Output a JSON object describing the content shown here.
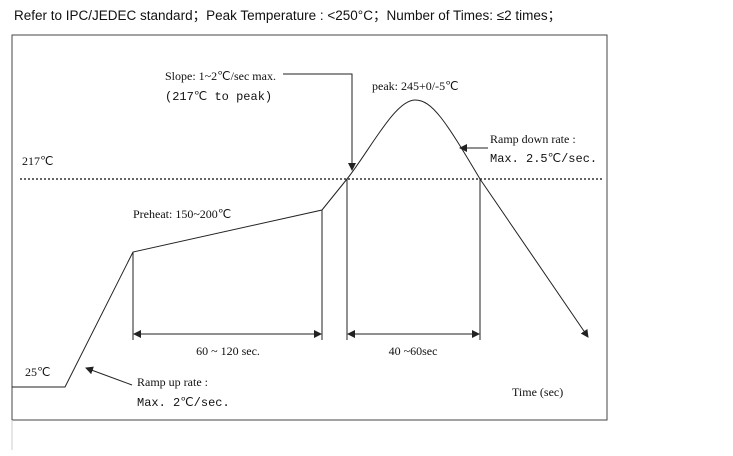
{
  "header": {
    "title": "Refer to IPC/JEDEC standard；Peak Temperature : <250°C；Number of Times:  ≤2 times；"
  },
  "diagram": {
    "slope_line1": "Slope: 1~2℃/sec max.",
    "slope_line2": "(217℃ to peak)",
    "peak": "peak: 245+0/-5℃",
    "ramp_down_line1": "Ramp down rate :",
    "ramp_down_line2": "Max. 2.5℃/sec.",
    "liquidus": "217℃",
    "preheat": "Preheat: 150~200℃",
    "start_temp": "25℃",
    "ramp_up_line1": "Ramp up rate :",
    "ramp_up_line2": "Max. 2℃/sec.",
    "preheat_time": "60 ~ 120 sec.",
    "liquidus_time": "40 ~60sec",
    "x_axis": "Time (sec)"
  }
}
